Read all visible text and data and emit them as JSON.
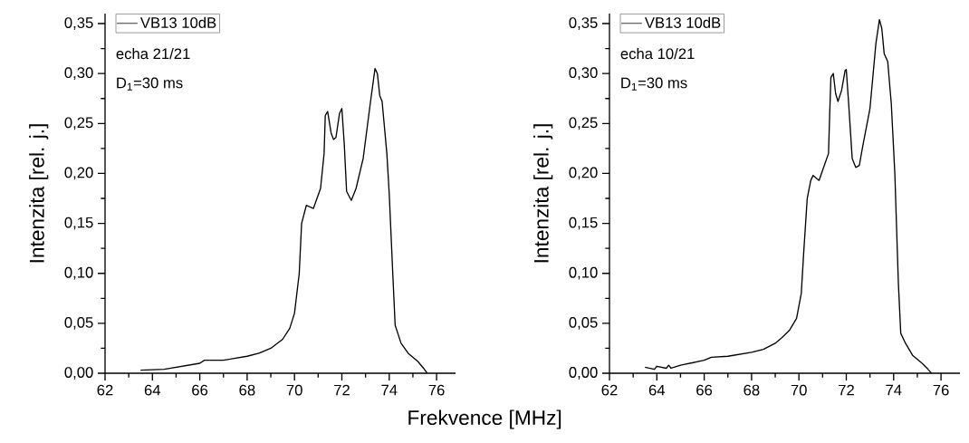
{
  "chart_data": [
    {
      "type": "line",
      "xlabel": "Frekvence [MHz]",
      "ylabel": "Intenzita [rel. j.]",
      "legend": "top left",
      "marker": "none",
      "line_style": "solid",
      "annotations": [
        "echa 21/21",
        "D$_{1}$=30 ms"
      ],
      "xlim": [
        62,
        76.8
      ],
      "ylim": [
        0,
        0.36
      ],
      "xticks": [
        62,
        64,
        66,
        68,
        70,
        72,
        74,
        76
      ],
      "yticks": [
        {
          "value": 0,
          "label": "0,00"
        },
        {
          "value": 0.05,
          "label": "0,05"
        },
        {
          "value": 0.1,
          "label": "0,10"
        },
        {
          "value": 0.15,
          "label": "0,15"
        },
        {
          "value": 0.2,
          "label": "0,20"
        },
        {
          "value": 0.25,
          "label": "0,25"
        },
        {
          "value": 0.3,
          "label": "0,30"
        },
        {
          "value": 0.35,
          "label": "0,35"
        }
      ],
      "series": [
        {
          "name": "VB13 10dB",
          "color": "#000000",
          "x": [
            63.5,
            64.5,
            65,
            66,
            66.2,
            67,
            68,
            68.5,
            69,
            69.5,
            69.8,
            70.0,
            70.2,
            70.3,
            70.5,
            70.8,
            71.1,
            71.25,
            71.3,
            71.4,
            71.55,
            71.65,
            71.75,
            71.9,
            72.0,
            72.1,
            72.2,
            72.4,
            72.6,
            72.9,
            73.2,
            73.4,
            73.5,
            73.6,
            73.7,
            73.9,
            74.0,
            74.15,
            74.25,
            74.5,
            74.8,
            75.2,
            75.45,
            75.6
          ],
          "values": [
            0.003,
            0.004,
            0.006,
            0.01,
            0.013,
            0.013,
            0.017,
            0.02,
            0.025,
            0.034,
            0.045,
            0.06,
            0.1,
            0.15,
            0.168,
            0.165,
            0.185,
            0.22,
            0.258,
            0.262,
            0.24,
            0.234,
            0.236,
            0.26,
            0.265,
            0.23,
            0.182,
            0.173,
            0.185,
            0.215,
            0.27,
            0.305,
            0.3,
            0.278,
            0.272,
            0.22,
            0.18,
            0.1,
            0.048,
            0.03,
            0.02,
            0.012,
            0.005,
            0.0
          ]
        }
      ]
    },
    {
      "type": "line",
      "ylabel": "Intenzita [rel. j.]",
      "legend": "top left",
      "marker": "none",
      "line_style": "solid",
      "annotations": [
        "echa 10/21",
        "D$_{1}$=30 ms"
      ],
      "xlim": [
        62,
        76.8
      ],
      "ylim": [
        0,
        0.36
      ],
      "xticks": [
        62,
        64,
        66,
        68,
        70,
        72,
        74,
        76
      ],
      "yticks": [
        {
          "value": 0,
          "label": "0,00"
        },
        {
          "value": 0.05,
          "label": "0,05"
        },
        {
          "value": 0.1,
          "label": "0,10"
        },
        {
          "value": 0.15,
          "label": "0,15"
        },
        {
          "value": 0.2,
          "label": "0,20"
        },
        {
          "value": 0.25,
          "label": "0,25"
        },
        {
          "value": 0.3,
          "label": "0,30"
        },
        {
          "value": 0.35,
          "label": "0,35"
        }
      ],
      "series": [
        {
          "name": "VB13 10dB",
          "color": "#000000",
          "x": [
            63.5,
            63.9,
            64.0,
            64.4,
            64.5,
            64.6,
            65,
            66,
            66.3,
            67,
            68,
            68.5,
            69,
            69.3,
            69.6,
            69.9,
            70.1,
            70.2,
            70.35,
            70.5,
            70.6,
            70.85,
            71.1,
            71.25,
            71.3,
            71.35,
            71.45,
            71.55,
            71.65,
            71.8,
            71.95,
            72.0,
            72.1,
            72.25,
            72.4,
            72.55,
            72.7,
            73.0,
            73.25,
            73.4,
            73.5,
            73.6,
            73.75,
            73.9,
            74.05,
            74.2,
            74.3,
            74.5,
            74.8,
            75.2,
            75.45,
            75.6
          ],
          "values": [
            0.006,
            0.004,
            0.007,
            0.005,
            0.008,
            0.005,
            0.008,
            0.013,
            0.016,
            0.017,
            0.021,
            0.024,
            0.03,
            0.036,
            0.043,
            0.055,
            0.08,
            0.12,
            0.175,
            0.193,
            0.198,
            0.193,
            0.21,
            0.22,
            0.26,
            0.296,
            0.3,
            0.28,
            0.272,
            0.283,
            0.303,
            0.304,
            0.27,
            0.215,
            0.206,
            0.208,
            0.228,
            0.265,
            0.33,
            0.354,
            0.345,
            0.32,
            0.312,
            0.27,
            0.2,
            0.09,
            0.04,
            0.03,
            0.018,
            0.01,
            0.004,
            0.0
          ]
        }
      ]
    }
  ]
}
